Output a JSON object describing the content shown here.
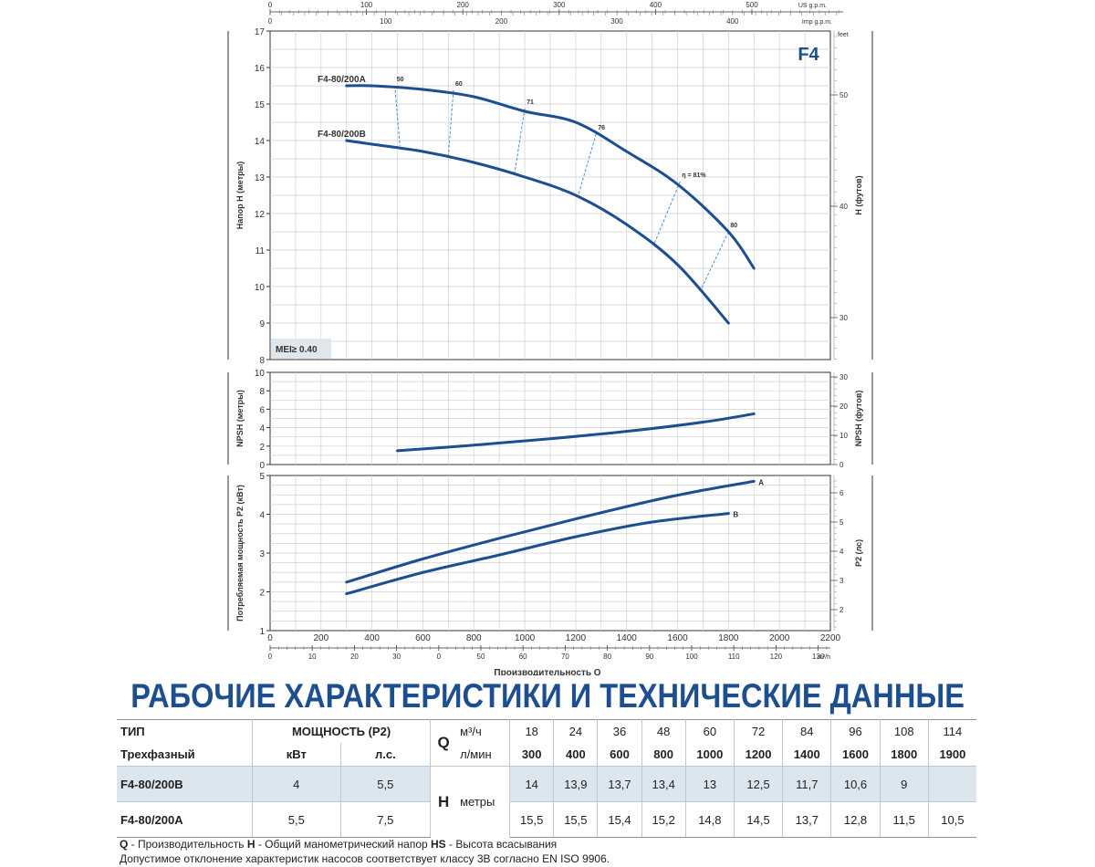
{
  "chart_data": [
    {
      "type": "line",
      "badge": "F4",
      "mei_label": "MEI≥ 0.40",
      "ylabel": "Напор H (метры)",
      "ylabel_right": "H (футов)",
      "ylim": [
        8,
        17
      ],
      "yticks": [
        8,
        9,
        10,
        11,
        12,
        13,
        14,
        15,
        16,
        17
      ],
      "yticks_right": [
        "30",
        "40",
        "50"
      ],
      "unit_right": "feet",
      "series": [
        {
          "name": "F4-80/200A",
          "x": [
            300,
            400,
            600,
            800,
            1000,
            1200,
            1400,
            1600,
            1800,
            1900
          ],
          "values": [
            15.5,
            15.5,
            15.4,
            15.2,
            14.8,
            14.5,
            13.7,
            12.8,
            11.5,
            10.5
          ],
          "color": "#1c4f8f"
        },
        {
          "name": "F4-80/200B",
          "x": [
            300,
            400,
            600,
            800,
            1000,
            1200,
            1400,
            1600,
            1800
          ],
          "values": [
            14,
            13.9,
            13.7,
            13.4,
            13,
            12.5,
            11.7,
            10.6,
            9
          ],
          "color": "#1c4f8f"
        }
      ],
      "efficiency": [
        {
          "label": "50",
          "xA": 490,
          "yA": 15.5,
          "xB": 510,
          "yB": 13.85
        },
        {
          "label": "60",
          "xA": 720,
          "yA": 15.38,
          "xB": 700,
          "yB": 13.6
        },
        {
          "label": "71",
          "xA": 1000,
          "yA": 14.88,
          "xB": 960,
          "yB": 13.1
        },
        {
          "label": "76",
          "xA": 1280,
          "yA": 14.18,
          "xB": 1210,
          "yB": 12.5
        },
        {
          "label": "η = 81%",
          "xA": 1610,
          "yA": 12.88,
          "xB": 1510,
          "yB": 11.2
        },
        {
          "label": "80",
          "xA": 1800,
          "yA": 11.5,
          "xB": 1690,
          "yB": 9.9
        }
      ]
    },
    {
      "type": "line",
      "ylabel": "NPSH (метры)",
      "ylabel_right": "NPSH (футов)",
      "ylim": [
        0,
        10
      ],
      "yticks": [
        0,
        2,
        4,
        6,
        8,
        10
      ],
      "yticks_right": [
        "0",
        "10",
        "20",
        "30"
      ],
      "series": [
        {
          "name": "",
          "x": [
            500,
            800,
            1100,
            1400,
            1700,
            1900
          ],
          "values": [
            1.5,
            2.1,
            2.8,
            3.6,
            4.6,
            5.5
          ],
          "color": "#1c4f8f"
        }
      ]
    },
    {
      "type": "line",
      "ylabel": "Потребляемая мощность P2 (кВт)",
      "ylabel_right": "P2 (лс)",
      "ylim": [
        1,
        5
      ],
      "yticks": [
        1,
        2,
        3,
        4,
        5
      ],
      "yticks_right": [
        "2",
        "3",
        "4",
        "5",
        "6"
      ],
      "series": [
        {
          "name": "A",
          "x": [
            300,
            600,
            900,
            1200,
            1500,
            1700,
            1900
          ],
          "values": [
            2.25,
            2.85,
            3.38,
            3.88,
            4.35,
            4.62,
            4.85
          ],
          "color": "#1c4f8f"
        },
        {
          "name": "B",
          "x": [
            300,
            600,
            900,
            1200,
            1500,
            1800
          ],
          "values": [
            1.95,
            2.5,
            2.95,
            3.42,
            3.8,
            4.02
          ],
          "color": "#1c4f8f"
        }
      ]
    }
  ],
  "x_axis": {
    "label": "Производительность Q",
    "ticks_lmin": [
      0,
      200,
      400,
      600,
      800,
      1000,
      1200,
      1400,
      1600,
      1800,
      2000,
      2200
    ],
    "ticks_m3h": [
      "0",
      "10",
      "20",
      "30",
      "0",
      "50",
      "60",
      "70",
      "80",
      "90",
      "100",
      "110",
      "120",
      "130"
    ],
    "unit_m3h": "m³/h",
    "us_gpm_ticks": [
      "0",
      "100",
      "200",
      "300",
      "400",
      "500"
    ],
    "us_gpm_unit": "US g.p.m.",
    "imp_gpm_ticks": [
      "0",
      "100",
      "200",
      "300",
      "400"
    ],
    "imp_gpm_unit": "Imp g.p.m."
  },
  "section_title": "РАБОЧИЕ ХАРАКТЕРИСТИКИ И ТЕХНИЧЕСКИЕ ДАННЫЕ",
  "table": {
    "h_type": "ТИП",
    "h_power": "МОЩНОСТЬ (P2)",
    "q_letter": "Q",
    "q_unit1": "м³/ч",
    "q_unit2": "л/мин",
    "h_three_phase": "Трехфазный",
    "h_kw": "кВт",
    "h_hp": "л.с.",
    "h_letter": "H",
    "h_unit": "метры",
    "m3h": [
      "18",
      "24",
      "36",
      "48",
      "60",
      "72",
      "84",
      "96",
      "108",
      "114"
    ],
    "lmin": [
      "300",
      "400",
      "600",
      "800",
      "1000",
      "1200",
      "1400",
      "1600",
      "1800",
      "1900"
    ],
    "rows": [
      {
        "model": "F4-80/200B",
        "kw": "4",
        "hp": "5,5",
        "h": [
          "14",
          "13,9",
          "13,7",
          "13,4",
          "13",
          "12,5",
          "11,7",
          "10,6",
          "9",
          ""
        ]
      },
      {
        "model": "F4-80/200A",
        "kw": "5,5",
        "hp": "7,5",
        "h": [
          "15,5",
          "15,5",
          "15,4",
          "15,2",
          "14,8",
          "14,5",
          "13,7",
          "12,8",
          "11,5",
          "10,5"
        ]
      }
    ]
  },
  "footnote1_q": "Q",
  "footnote1_q_text": " - Производительность  ",
  "footnote1_h": "H",
  "footnote1_h_text": " - Общий манометрический напор  ",
  "footnote1_hs": "HS",
  "footnote1_hs_text": " - Высота всасывания",
  "footnote2": "Допустимое отклонение характеристик насосов соответствует классу 3B согласно EN ISO 9906."
}
